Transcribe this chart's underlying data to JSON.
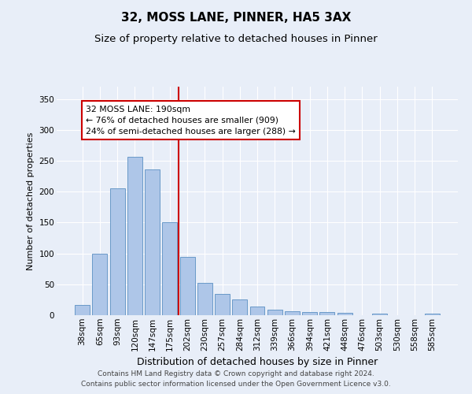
{
  "title": "32, MOSS LANE, PINNER, HA5 3AX",
  "subtitle": "Size of property relative to detached houses in Pinner",
  "xlabel": "Distribution of detached houses by size in Pinner",
  "ylabel": "Number of detached properties",
  "bar_labels": [
    "38sqm",
    "65sqm",
    "93sqm",
    "120sqm",
    "147sqm",
    "175sqm",
    "202sqm",
    "230sqm",
    "257sqm",
    "284sqm",
    "312sqm",
    "339sqm",
    "366sqm",
    "394sqm",
    "421sqm",
    "448sqm",
    "476sqm",
    "503sqm",
    "530sqm",
    "558sqm",
    "585sqm"
  ],
  "bar_values": [
    17,
    100,
    205,
    257,
    236,
    150,
    95,
    52,
    35,
    25,
    14,
    9,
    6,
    5,
    5,
    4,
    0,
    2,
    0,
    0,
    2
  ],
  "bar_color": "#aec6e8",
  "bar_edge_color": "#5a8fc2",
  "vline_color": "#cc0000",
  "annotation_text": "32 MOSS LANE: 190sqm\n← 76% of detached houses are smaller (909)\n24% of semi-detached houses are larger (288) →",
  "annotation_box_color": "#ffffff",
  "annotation_box_edge": "#cc0000",
  "ylim": [
    0,
    370
  ],
  "yticks": [
    0,
    50,
    100,
    150,
    200,
    250,
    300,
    350
  ],
  "bg_color": "#e8eef8",
  "plot_bg_color": "#e8eef8",
  "footer_line1": "Contains HM Land Registry data © Crown copyright and database right 2024.",
  "footer_line2": "Contains public sector information licensed under the Open Government Licence v3.0.",
  "title_fontsize": 11,
  "subtitle_fontsize": 9.5,
  "xlabel_fontsize": 9,
  "ylabel_fontsize": 8,
  "tick_fontsize": 7.5,
  "annotation_fontsize": 7.8,
  "footer_fontsize": 6.5
}
